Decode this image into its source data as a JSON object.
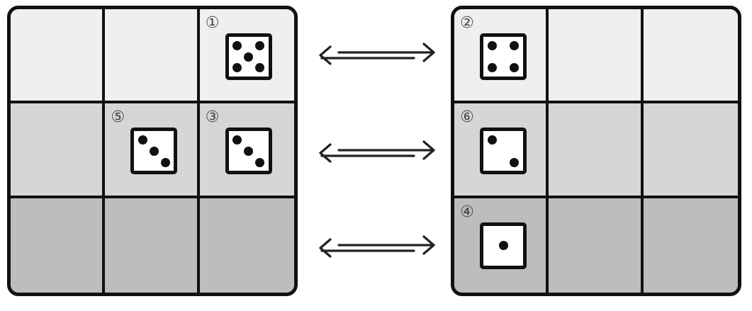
{
  "boards": [
    {
      "name": "left-board",
      "dice": [
        {
          "row": 0,
          "col": 2,
          "label": "①",
          "pips": 5
        },
        {
          "row": 1,
          "col": 1,
          "label": "⑤",
          "pips": 3
        },
        {
          "row": 1,
          "col": 2,
          "label": "③",
          "pips": 3
        }
      ]
    },
    {
      "name": "right-board",
      "dice": [
        {
          "row": 0,
          "col": 0,
          "label": "②",
          "pips": 4
        },
        {
          "row": 1,
          "col": 0,
          "label": "⑥",
          "pips": 2
        },
        {
          "row": 2,
          "col": 0,
          "label": "④",
          "pips": 1
        }
      ]
    }
  ],
  "arrows": [
    {
      "row": 0,
      "direction": "bidirectional"
    },
    {
      "row": 1,
      "direction": "bidirectional"
    },
    {
      "row": 2,
      "direction": "bidirectional"
    }
  ],
  "colors": {
    "row_0": "#efefef",
    "row_1": "#d6d6d6",
    "row_2": "#bdbdbd",
    "line": "#111111",
    "die_face": "#ffffff"
  }
}
